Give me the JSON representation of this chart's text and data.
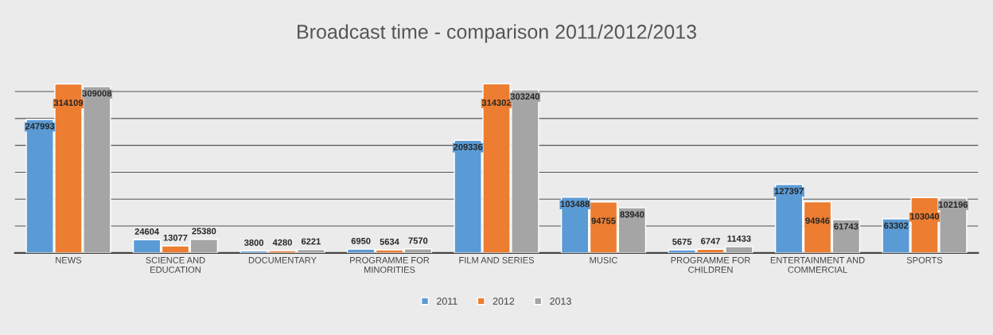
{
  "chart_data": {
    "type": "bar",
    "title": "Broadcast time - comparison 2011/2012/2013",
    "categories": [
      "NEWS",
      "SCIENCE AND EDUCATION",
      "DOCUMENTARY",
      "PROGRAMME FOR MINORITIES",
      "FILM AND SERIES",
      "MUSIC",
      "PROGRAMME FOR CHILDREN",
      "ENTERTAINMENT AND COMMERCIAL",
      "SPORTS"
    ],
    "series": [
      {
        "name": "2011",
        "color": "#5b9bd5",
        "values": [
          247993,
          24604,
          3800,
          6950,
          209336,
          103488,
          5675,
          127397,
          63302
        ]
      },
      {
        "name": "2012",
        "color": "#ed7d31",
        "values": [
          314109,
          13077,
          4280,
          5634,
          314302,
          94755,
          6747,
          94946,
          103040
        ]
      },
      {
        "name": "2013",
        "color": "#a5a5a5",
        "values": [
          309008,
          25380,
          6221,
          7570,
          303240,
          83940,
          11433,
          61743,
          102196
        ]
      }
    ],
    "yticks": [
      {
        "value": 0,
        "label": null
      },
      {
        "value": 50000,
        "label": null
      },
      {
        "value": 100000,
        "label": null
      },
      {
        "value": 150000,
        "label": null
      },
      {
        "value": 200000,
        "label": null
      },
      {
        "value": 250000,
        "label": null
      },
      {
        "value": 300000,
        "label": null
      }
    ],
    "tick_labels": "x",
    "grid": "y",
    "legend": "bottom",
    "data_labels": true
  }
}
